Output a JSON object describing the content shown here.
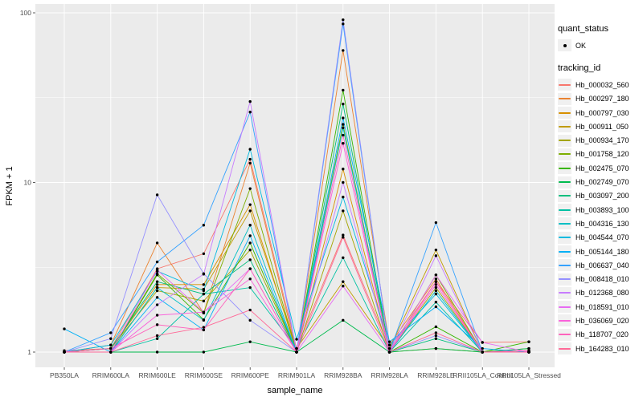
{
  "figure": {
    "x_axis_title": "sample_name",
    "y_axis_title": "FPKM + 1",
    "legend": {
      "quant_title": "quant_status",
      "quant_items": [
        {
          "label": "OK",
          "symbol": "black-point"
        }
      ],
      "tracking_title": "tracking_id"
    },
    "colors": {
      "panel_bg": "#EBEBEB",
      "gridline": "#FFFFFF",
      "tick_text": "#4D4D4D",
      "point": "#000000",
      "legend_key_bg": "#F0F0F0"
    }
  },
  "chart_data": {
    "type": "line",
    "x_label": "sample_name",
    "y_label": "FPKM + 1",
    "y_scale": "log10",
    "ylim": [
      0.81,
      113
    ],
    "y_tick_values": [
      1,
      10,
      100
    ],
    "y_tick_labels": [
      "1",
      "10",
      "100"
    ],
    "y_minor_gridlines": [
      3.162,
      31.62
    ],
    "grid": true,
    "legend_position": "right",
    "categories": [
      "PB350LA",
      "RRIM600LA",
      "RRIM600LE",
      "RRIM600SE",
      "RRIM600PE",
      "RRIM901LA",
      "RRIM928BA",
      "RRIM928LA",
      "RRIM928LE",
      "RRII105LA_Control",
      "RRII105LA_Stressed"
    ],
    "series": [
      {
        "name": "Hb_000032_560",
        "color": "#F8766D",
        "values": [
          1.02,
          1.05,
          3.1,
          3.8,
          13.7,
          1.05,
          4.9,
          1.05,
          2.6,
          1.14,
          1.15
        ]
      },
      {
        "name": "Hb_000297_180",
        "color": "#EA8331",
        "values": [
          1.0,
          1.1,
          4.4,
          1.7,
          13.0,
          1.0,
          60.0,
          1.1,
          2.7,
          1.0,
          1.02
        ]
      },
      {
        "name": "Hb_000797_030",
        "color": "#D89000",
        "values": [
          1.0,
          1.05,
          2.5,
          2.5,
          7.4,
          1.0,
          12.0,
          1.0,
          1.05,
          1.0,
          1.0
        ]
      },
      {
        "name": "Hb_000911_050",
        "color": "#C09B00",
        "values": [
          1.0,
          1.0,
          2.4,
          2.35,
          6.8,
          1.05,
          2.6,
          1.05,
          4.0,
          1.0,
          1.0
        ]
      },
      {
        "name": "Hb_000934_170",
        "color": "#A3A500",
        "values": [
          1.0,
          1.05,
          2.3,
          2.0,
          4.0,
          1.0,
          6.8,
          1.0,
          2.4,
          1.0,
          1.0
        ]
      },
      {
        "name": "Hb_001758_120",
        "color": "#7CAE00",
        "values": [
          1.0,
          1.0,
          2.9,
          1.7,
          9.2,
          1.0,
          22.0,
          1.0,
          2.85,
          1.0,
          1.05
        ]
      },
      {
        "name": "Hb_002475_070",
        "color": "#39B600",
        "values": [
          1.0,
          1.0,
          2.85,
          1.55,
          4.4,
          1.0,
          35.0,
          1.0,
          1.41,
          1.0,
          1.15
        ]
      },
      {
        "name": "Hb_002749_070",
        "color": "#00BB4E",
        "values": [
          1.0,
          1.0,
          1.0,
          1.0,
          1.15,
          1.0,
          1.54,
          1.0,
          1.05,
          1.0,
          1.05
        ]
      },
      {
        "name": "Hb_003097_200",
        "color": "#00BF7D",
        "values": [
          1.0,
          1.05,
          2.6,
          2.2,
          3.5,
          1.0,
          29.0,
          1.0,
          1.2,
          1.0,
          1.0
        ]
      },
      {
        "name": "Hb_003893_100",
        "color": "#00C1A3",
        "values": [
          1.0,
          1.0,
          1.2,
          2.2,
          2.4,
          1.05,
          3.6,
          1.0,
          1.97,
          1.0,
          1.0
        ]
      },
      {
        "name": "Hb_004316_130",
        "color": "#00BFC4",
        "values": [
          1.0,
          1.0,
          2.4,
          1.54,
          5.6,
          1.0,
          21.0,
          1.0,
          2.3,
          1.0,
          1.0
        ]
      },
      {
        "name": "Hb_004544_070",
        "color": "#00BAE0",
        "values": [
          1.0,
          1.1,
          3.0,
          2.3,
          15.7,
          1.19,
          8.2,
          1.1,
          2.2,
          1.0,
          1.0
        ]
      },
      {
        "name": "Hb_005144_180",
        "color": "#00B0F6",
        "values": [
          1.37,
          1.0,
          2.1,
          1.35,
          4.85,
          1.0,
          24.0,
          1.15,
          1.85,
          1.05,
          1.0
        ]
      },
      {
        "name": "Hb_006637_040",
        "color": "#35A2FF",
        "values": [
          1.0,
          1.3,
          3.4,
          5.6,
          26.0,
          1.0,
          86.0,
          1.0,
          5.8,
          1.0,
          1.0
        ]
      },
      {
        "name": "Hb_008418_010",
        "color": "#9590FF",
        "values": [
          1.0,
          1.2,
          8.45,
          2.9,
          1.54,
          1.0,
          91.0,
          1.0,
          1.25,
          1.0,
          1.0
        ]
      },
      {
        "name": "Hb_012368_080",
        "color": "#C77CFF",
        "values": [
          1.0,
          1.0,
          1.9,
          2.88,
          30.0,
          1.0,
          10.0,
          1.0,
          3.7,
          1.0,
          1.0
        ]
      },
      {
        "name": "Hb_018591_010",
        "color": "#E76BF3",
        "values": [
          1.0,
          1.0,
          3.05,
          1.72,
          3.1,
          1.0,
          2.45,
          1.0,
          2.85,
          1.14,
          1.0
        ]
      },
      {
        "name": "Hb_036069_020",
        "color": "#FA62DB",
        "values": [
          1.0,
          1.0,
          1.65,
          1.72,
          2.7,
          1.0,
          17.0,
          1.0,
          2.5,
          1.0,
          1.0
        ]
      },
      {
        "name": "Hb_118707_020",
        "color": "#FF62BC",
        "values": [
          1.0,
          1.05,
          1.45,
          1.35,
          3.1,
          1.0,
          19.0,
          1.0,
          2.6,
          1.0,
          1.02
        ]
      },
      {
        "name": "Hb_164283_010",
        "color": "#FF6A98",
        "values": [
          1.0,
          1.0,
          1.25,
          1.4,
          1.77,
          1.0,
          4.75,
          1.0,
          1.3,
          1.0,
          1.0
        ]
      }
    ]
  }
}
